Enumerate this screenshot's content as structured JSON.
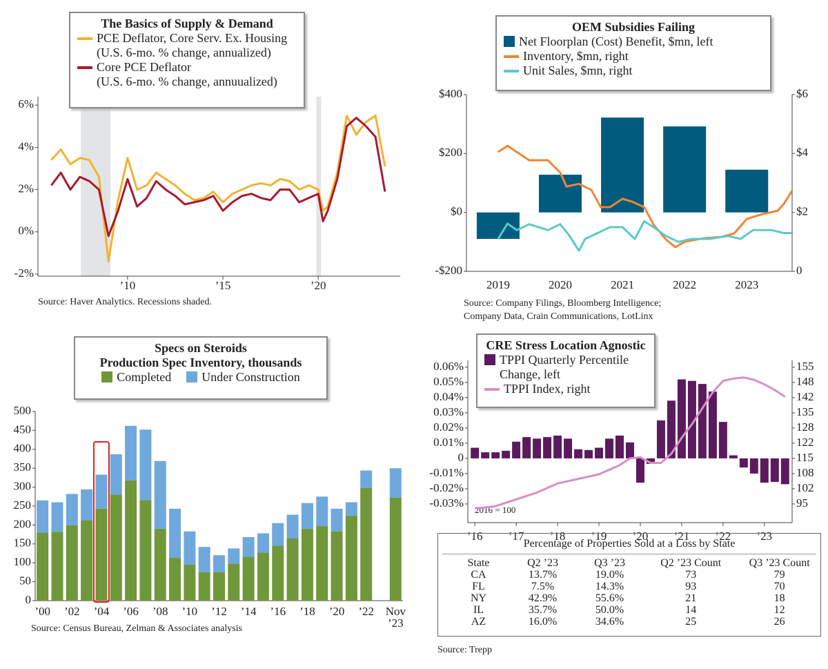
{
  "chart_data": [
    {
      "type": "line",
      "title": "The Basics of Supply & Demand",
      "x": [
        2006,
        2006.5,
        2007,
        2007.5,
        2008,
        2008.5,
        2009,
        2009.5,
        2010,
        2010.5,
        2011,
        2011.5,
        2012,
        2012.5,
        2013,
        2013.5,
        2014,
        2014.5,
        2015,
        2015.5,
        2016,
        2016.5,
        2017,
        2017.5,
        2018,
        2018.5,
        2019,
        2019.5,
        2020,
        2020.25,
        2020.5,
        2021,
        2021.5,
        2022,
        2022.5,
        2023,
        2023.5
      ],
      "xlim": [
        2005.3,
        2024.3
      ],
      "xticks": [
        {
          "value": 2010,
          "label": "’10"
        },
        {
          "value": 2015,
          "label": "’15"
        },
        {
          "value": 2020,
          "label": "’20"
        }
      ],
      "ylim": [
        -2.1,
        6.4
      ],
      "yticks": [
        {
          "value": 6,
          "label": "6%"
        },
        {
          "value": 4,
          "label": "4%"
        },
        {
          "value": 2,
          "label": "2%"
        },
        {
          "value": 0,
          "label": "0%"
        },
        {
          "value": -2,
          "label": "-2%"
        }
      ],
      "series": [
        {
          "name": "PCE Deflator, Core Serv. Ex. Housing",
          "unit": "(U.S. 6-mo. % change, annualized)",
          "color": "#f2b233",
          "values": [
            3.4,
            3.9,
            3.2,
            3.5,
            3.4,
            2.6,
            -1.4,
            1.5,
            3.5,
            2.0,
            2.2,
            2.8,
            2.5,
            2.2,
            1.8,
            1.5,
            1.6,
            1.9,
            1.4,
            1.8,
            2.0,
            2.2,
            2.3,
            2.2,
            2.5,
            2.4,
            2.0,
            2.2,
            2.0,
            1.0,
            1.2,
            2.8,
            5.5,
            4.6,
            5.2,
            5.5,
            3.1
          ]
        },
        {
          "name": "Core PCE Deflator",
          "unit": "(U.S. 6-mo. % change, annuualized)",
          "color": "#a8192e",
          "values": [
            2.2,
            2.8,
            2.0,
            2.6,
            2.4,
            2.0,
            -0.2,
            1.0,
            2.5,
            1.2,
            1.6,
            2.4,
            2.0,
            1.7,
            1.3,
            1.4,
            1.5,
            1.7,
            1.0,
            1.4,
            1.7,
            1.8,
            1.6,
            1.5,
            2.0,
            2.0,
            1.4,
            1.6,
            1.8,
            0.5,
            1.0,
            2.5,
            5.0,
            5.4,
            5.0,
            4.5,
            1.9
          ]
        }
      ],
      "recessions": [
        [
          2007.55,
          2009.1
        ],
        [
          2019.9,
          2020.15
        ]
      ],
      "source": "Source: Haver Analytics. Recessions shaded."
    },
    {
      "type": "combo",
      "title": "OEM Subsidies Failing",
      "categories": [
        "2019",
        "2020",
        "2021",
        "2022",
        "2023"
      ],
      "xlim": [
        2018.49,
        2023.73
      ],
      "ylim": [
        -200,
        400
      ],
      "yticks": [
        {
          "value": 400,
          "label": "$400"
        },
        {
          "value": 200,
          "label": "$200"
        },
        {
          "value": 0,
          "label": "$0"
        },
        {
          "value": -200,
          "label": "-$200"
        }
      ],
      "y2lim": [
        0,
        6
      ],
      "y2ticks": [
        {
          "value": 6,
          "label": "$6"
        },
        {
          "value": 4,
          "label": "$4"
        },
        {
          "value": 2,
          "label": "$2"
        },
        0
      ],
      "series": [
        {
          "name": "Net Floorplan (Cost) Benefit, $mn, left",
          "type": "bar",
          "color": "#005b7f",
          "values": [
            -90,
            128,
            322,
            292,
            145
          ]
        },
        {
          "name": "Inventory, $mn, right",
          "type": "line",
          "axis": "y2",
          "color": "#ef8535",
          "x": [
            2019.0,
            2019.15,
            2019.5,
            2019.8,
            2020.0,
            2020.1,
            2020.3,
            2020.5,
            2020.65,
            2020.8,
            2021.0,
            2021.15,
            2021.35,
            2021.5,
            2021.7,
            2021.85,
            2022.0,
            2022.3,
            2022.6,
            2022.8,
            2023.0,
            2023.25,
            2023.5,
            2023.6,
            2023.73
          ],
          "values": [
            4.05,
            4.26,
            3.77,
            3.77,
            3.35,
            2.88,
            2.97,
            2.76,
            2.18,
            2.18,
            2.46,
            2.37,
            2.18,
            1.59,
            1.08,
            0.82,
            1.0,
            1.12,
            1.17,
            1.29,
            1.78,
            1.94,
            2.06,
            2.3,
            2.74
          ]
        },
        {
          "name": "Unit Sales, $mn, right",
          "type": "line",
          "axis": "y2",
          "color": "#5cc9c9",
          "x": [
            2019.0,
            2019.15,
            2019.3,
            2019.5,
            2019.8,
            2020.0,
            2020.15,
            2020.3,
            2020.4,
            2020.6,
            2020.8,
            2021.0,
            2021.2,
            2021.35,
            2021.5,
            2021.7,
            2021.9,
            2022.1,
            2022.4,
            2022.7,
            2022.9,
            2023.1,
            2023.4,
            2023.6,
            2023.73
          ],
          "values": [
            1.1,
            1.62,
            1.4,
            1.6,
            1.4,
            1.6,
            1.2,
            0.7,
            1.1,
            1.3,
            1.5,
            1.5,
            1.1,
            1.7,
            1.5,
            1.2,
            1.0,
            1.1,
            1.1,
            1.2,
            1.1,
            1.4,
            1.4,
            1.3,
            1.3
          ]
        }
      ],
      "source": [
        "Source: Company Filings, Bloomberg Intelligence;",
        "Company Data, Crain Communications, LotLinx"
      ]
    },
    {
      "type": "bar",
      "stacked": true,
      "title": "Specs on Steroids",
      "subtitle": "Production Spec Inventory, thousands",
      "categories": [
        "’00",
        null,
        "’02",
        null,
        "’04",
        null,
        "’06",
        null,
        "’08",
        null,
        "’10",
        null,
        "’12",
        null,
        "’14",
        null,
        "’16",
        null,
        "’18",
        null,
        "’20",
        null,
        "’22",
        null,
        "Nov ’23"
      ],
      "ylim": [
        0,
        500
      ],
      "yticks": [
        0,
        50,
        100,
        150,
        200,
        250,
        300,
        350,
        400,
        450,
        500
      ],
      "highlight": "’04",
      "series": [
        {
          "name": "Completed",
          "color": "#70973a",
          "values": [
            180,
            182,
            199,
            213,
            243,
            280,
            318,
            266,
            190,
            113,
            95,
            75,
            75,
            98,
            116,
            127,
            145,
            165,
            190,
            197,
            183,
            225,
            298,
            null,
            272
          ]
        },
        {
          "name": "Under Construction",
          "color": "#6fa8dc",
          "values": [
            85,
            78,
            83,
            81,
            90,
            107,
            144,
            186,
            179,
            130,
            88,
            67,
            45,
            40,
            52,
            51,
            60,
            62,
            68,
            78,
            60,
            35,
            46,
            null,
            78
          ]
        }
      ],
      "source": "Source: Census Bureau, Zelman & Associates analysis"
    },
    {
      "type": "combo",
      "title": "CRE Stress Location Agnostic",
      "xlim": [
        2015.83,
        2023.67
      ],
      "xticks": [
        {
          "value": 2016,
          "label": "’16"
        },
        {
          "value": 2017,
          "label": "’17"
        },
        {
          "value": 2018,
          "label": "’18"
        },
        {
          "value": 2019,
          "label": "’19"
        },
        {
          "value": 2020,
          "label": "’20"
        },
        {
          "value": 2021,
          "label": "’21"
        },
        {
          "value": 2022,
          "label": "’22"
        },
        {
          "value": 2023,
          "label": "’23"
        }
      ],
      "ylim": [
        -0.0423,
        0.0645
      ],
      "yticks": [
        {
          "value": 0.06,
          "label": "0.06%"
        },
        {
          "value": 0.05,
          "label": "0.05%"
        },
        {
          "value": 0.04,
          "label": "0.04%"
        },
        {
          "value": 0.03,
          "label": "0.03%"
        },
        {
          "value": 0.02,
          "label": "0.02%"
        },
        {
          "value": 0.01,
          "label": "0.01%"
        },
        0,
        {
          "value": -0.01,
          "label": "-0.01%"
        },
        {
          "value": -0.02,
          "label": "-0.02%"
        },
        {
          "value": -0.03,
          "label": "-0.03%"
        }
      ],
      "y2lim": [
        86.8,
        158.0
      ],
      "y2ticks": [
        155,
        {
          "value": 148.33,
          "label": "148"
        },
        {
          "value": 141.67,
          "label": "142"
        },
        135,
        {
          "value": 128.33,
          "label": "128"
        },
        {
          "value": 121.67,
          "label": "122"
        },
        115,
        {
          "value": 108.33,
          "label": "108"
        },
        {
          "value": 101.67,
          "label": "102"
        },
        95
      ],
      "series": [
        {
          "name": "TPPI Quarterly Percentile Change, left",
          "type": "bar",
          "color": "#5b1a5e",
          "x": [
            2016,
            2016.25,
            2016.5,
            2016.75,
            2017,
            2017.25,
            2017.5,
            2017.75,
            2018,
            2018.25,
            2018.5,
            2018.75,
            2019,
            2019.25,
            2019.5,
            2019.75,
            2020,
            2020.25,
            2020.5,
            2020.75,
            2021,
            2021.25,
            2021.5,
            2021.75,
            2022,
            2022.25,
            2022.5,
            2022.75,
            2023,
            2023.25,
            2023.5
          ],
          "values": [
            0.007,
            0.004,
            0.004,
            0.005,
            0.011,
            0.014,
            0.013,
            0.014,
            0.015,
            0.013,
            0.006,
            0.0055,
            0.007,
            0.013,
            0.015,
            0.0105,
            -0.016,
            -0.0036,
            0.025,
            0.038,
            0.052,
            0.051,
            0.049,
            0.044,
            0.024,
            0.002,
            -0.006,
            -0.01,
            -0.016,
            -0.0155,
            -0.017
          ]
        },
        {
          "name": "TPPI Index, right",
          "type": "line",
          "axis": "y2",
          "color": "#d68fc8",
          "x": [
            2016,
            2016.5,
            2017,
            2017.5,
            2018,
            2018.5,
            2019,
            2019.5,
            2019.75,
            2020,
            2020.25,
            2020.5,
            2020.75,
            2021,
            2021.25,
            2021.5,
            2021.75,
            2022,
            2022.25,
            2022.5,
            2022.75,
            2023,
            2023.25,
            2023.5
          ],
          "values": [
            93,
            94,
            97,
            100,
            104,
            106,
            108,
            112,
            115,
            115.5,
            113,
            113,
            117,
            124,
            130,
            137,
            144,
            149,
            150,
            150.5,
            149.5,
            147.5,
            145,
            142
          ]
        }
      ],
      "annotation": "2016 = 100"
    }
  ],
  "table": {
    "title": "Percentage of Properties Sold at a Loss by State",
    "columns": [
      "State",
      "Q2 ’23",
      "Q3 ’23",
      "Q2 ’23 Count",
      "Q3 ’23 Count"
    ],
    "rows": [
      [
        "CA",
        "13.7%",
        "19.0%",
        73,
        79
      ],
      [
        "FL",
        "7.5%",
        "14.3%",
        93,
        70
      ],
      [
        "NY",
        "42.9%",
        "55.6%",
        21,
        18
      ],
      [
        "IL",
        "35.7%",
        "50.0%",
        14,
        12
      ],
      [
        "AZ",
        "16.0%",
        "34.6%",
        25,
        26
      ]
    ],
    "source": "Source: Trepp"
  }
}
